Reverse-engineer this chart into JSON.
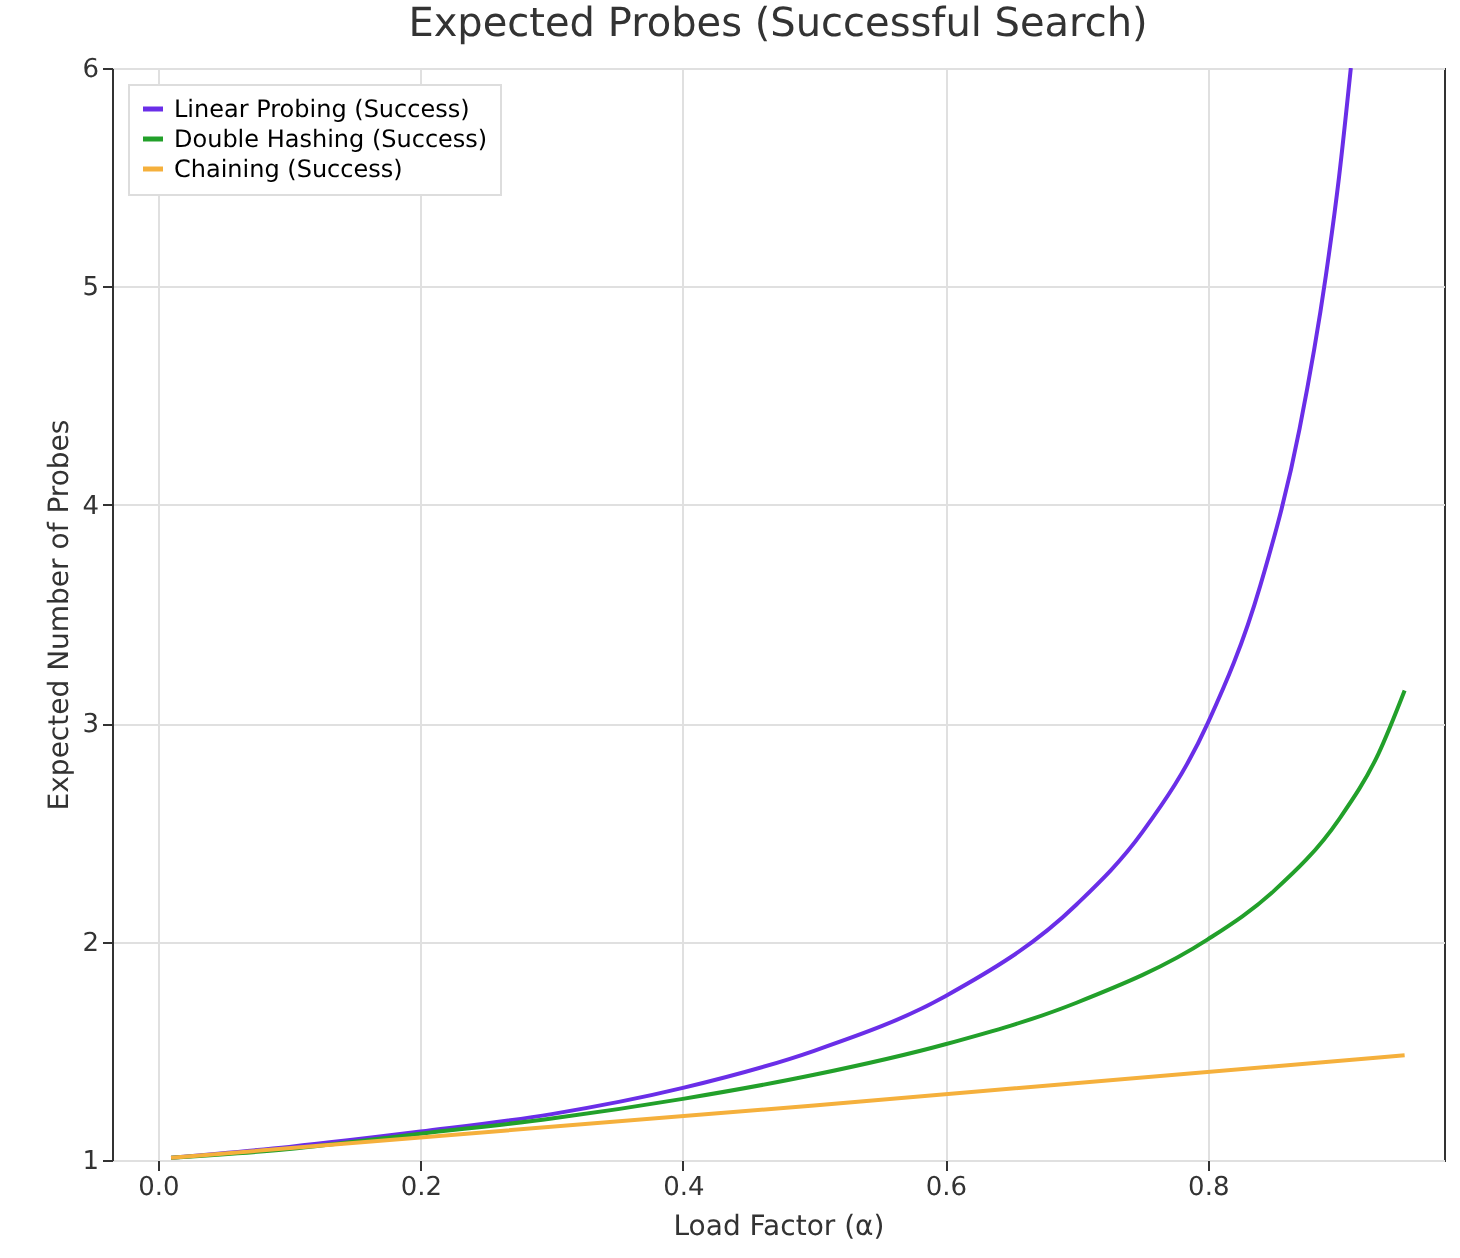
{
  "chart_data": {
    "type": "line",
    "title": "Expected Probes (Successful Search)",
    "xlabel": "Load Factor (α)",
    "ylabel": "Expected Number of Probes",
    "x": [
      0.01,
      0.1,
      0.2,
      0.3,
      0.4,
      0.5,
      0.6,
      0.7,
      0.8,
      0.85,
      0.9,
      0.93,
      0.95
    ],
    "series": [
      {
        "name": "Linear Probing (Success)",
        "color": "#6a2ee8",
        "x": [
          0.01,
          0.1,
          0.2,
          0.3,
          0.4,
          0.5,
          0.6,
          0.7,
          0.75,
          0.8,
          0.84,
          0.87,
          0.89,
          0.9,
          0.909
        ],
        "values": [
          1.01,
          1.06,
          1.13,
          1.21,
          1.33,
          1.5,
          1.75,
          2.17,
          2.5,
          3.0,
          3.63,
          4.35,
          5.05,
          5.5,
          6.0
        ]
      },
      {
        "name": "Double Hashing (Success)",
        "color": "#22a02a",
        "values": [
          1.01,
          1.05,
          1.12,
          1.19,
          1.28,
          1.39,
          1.53,
          1.72,
          2.01,
          2.23,
          2.56,
          2.86,
          3.15
        ]
      },
      {
        "name": "Chaining (Success)",
        "color": "#f5b03c",
        "x": [
          0.01,
          0.5,
          0.95
        ],
        "values": [
          1.01,
          1.25,
          1.48
        ]
      }
    ],
    "xlim": [
      -0.035,
      0.98
    ],
    "xticks": [
      {
        "value": 0,
        "label": "0.0"
      },
      0.2,
      0.4,
      0.6,
      0.8
    ],
    "ylim": [
      1,
      6
    ],
    "yticks": [
      1,
      2,
      3,
      4,
      5,
      6
    ],
    "grid": true,
    "legend": "top left",
    "line_style": "solid"
  }
}
